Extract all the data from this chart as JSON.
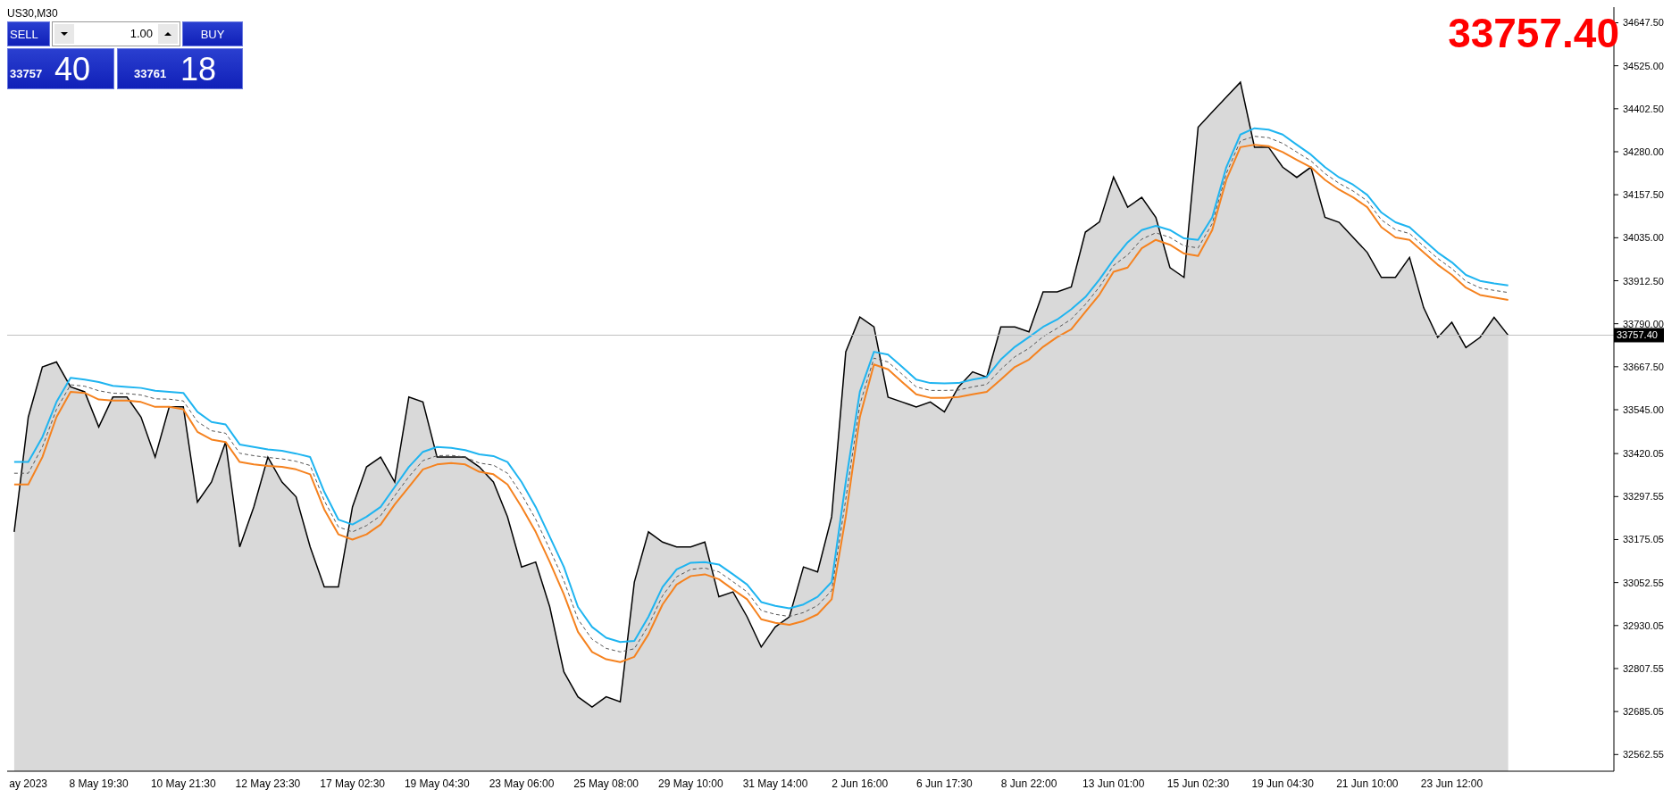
{
  "chart_data": {
    "type": "line",
    "title": "US30,M30",
    "categories": [
      null,
      "ay 2023",
      null,
      null,
      null,
      null,
      "8 May 19:30",
      null,
      null,
      null,
      null,
      null,
      "10 May 21:30",
      null,
      null,
      null,
      null,
      null,
      "12 May 23:30",
      null,
      null,
      null,
      null,
      null,
      "17 May 02:30",
      null,
      null,
      null,
      null,
      null,
      "19 May 04:30",
      null,
      null,
      null,
      null,
      null,
      "23 May 06:00",
      null,
      null,
      null,
      null,
      null,
      "25 May 08:00",
      null,
      null,
      null,
      null,
      null,
      "29 May 10:00",
      null,
      null,
      null,
      null,
      null,
      "31 May 14:00",
      null,
      null,
      null,
      null,
      null,
      "2 Jun 16:00",
      null,
      null,
      null,
      null,
      null,
      "6 Jun 17:30",
      null,
      null,
      null,
      null,
      null,
      "8 Jun 22:00",
      null,
      null,
      null,
      null,
      null,
      "13 Jun 01:00",
      null,
      null,
      null,
      null,
      null,
      "15 Jun 02:30",
      null,
      null,
      null,
      null,
      null,
      "19 Jun 04:30",
      null,
      null,
      null,
      null,
      null,
      "21 Jun 10:00",
      null,
      null,
      null,
      null,
      null,
      "23 Jun 12:00",
      null,
      null,
      null,
      null,
      null,
      null,
      null,
      null,
      null,
      null,
      null
    ],
    "series": [
      {
        "type": "area",
        "color": "#000000",
        "values": [
          33197,
          33524,
          33667,
          33681,
          33610,
          33596,
          33496,
          33581,
          33581,
          33524,
          33410,
          33553,
          33553,
          33282,
          33339,
          33453,
          33154,
          33268,
          33410,
          33339,
          33297,
          33154,
          33040,
          33040,
          33268,
          33382,
          33410,
          33339,
          33581,
          33567,
          33410,
          33410,
          33410,
          33382,
          33339,
          33240,
          33097,
          33111,
          32983,
          32798,
          32727,
          32698,
          32727,
          32713,
          33054,
          33197,
          33168,
          33154,
          33154,
          33168,
          33012,
          33026,
          32955,
          32869,
          32926,
          32955,
          33097,
          33083,
          33240,
          33710,
          33809,
          33781,
          33581,
          33567,
          33553,
          33567,
          33539,
          33610,
          33653,
          33638,
          33781,
          33781,
          33767,
          33881,
          33881,
          33895,
          34051,
          34080,
          34208,
          34122,
          34150,
          34093,
          33950,
          33922,
          34350,
          34393,
          34436,
          34478,
          34293,
          34293,
          34236,
          34207,
          34236,
          34093,
          34079,
          34036,
          33993,
          33922,
          33922,
          33979,
          33836,
          33751,
          33794,
          33722,
          33751,
          33808,
          33757,
          null,
          null,
          null,
          null,
          null,
          null,
          null
        ]
      },
      {
        "color": "#1eb4f0",
        "values": [
          33396,
          33396,
          33467,
          33567,
          33636,
          33631,
          33624,
          33613,
          33610,
          33607,
          33599,
          33596,
          33593,
          33539,
          33510,
          33503,
          33446,
          33439,
          33432,
          33428,
          33420,
          33410,
          33311,
          33232,
          33218,
          33240,
          33268,
          33325,
          33382,
          33425,
          33439,
          33436,
          33430,
          33418,
          33413,
          33396,
          33339,
          33268,
          33183,
          33097,
          32983,
          32926,
          32895,
          32883,
          32886,
          32955,
          33040,
          33090,
          33109,
          33111,
          33104,
          33076,
          33047,
          32997,
          32986,
          32979,
          32990,
          33012,
          33054,
          33339,
          33596,
          33710,
          33702,
          33667,
          33631,
          33621,
          33620,
          33621,
          33631,
          33638,
          33688,
          33724,
          33752,
          33781,
          33802,
          33831,
          33866,
          33916,
          33973,
          34022,
          34057,
          34069,
          34057,
          34033,
          34029,
          34093,
          34236,
          34329,
          34347,
          34343,
          34329,
          34300,
          34272,
          34236,
          34207,
          34186,
          34157,
          34107,
          34079,
          34065,
          34029,
          33993,
          33965,
          33929,
          33912,
          33905,
          33899,
          null,
          null,
          null,
          null,
          null,
          null,
          null
        ]
      },
      {
        "color": "#555555",
        "line_style": "dashed",
        "values": [
          33364,
          33364,
          33439,
          33546,
          33616,
          33612,
          33599,
          33592,
          33591,
          33587,
          33576,
          33575,
          33570,
          33511,
          33485,
          33478,
          33421,
          33414,
          33409,
          33405,
          33398,
          33386,
          33286,
          33211,
          33197,
          33215,
          33243,
          33300,
          33354,
          33400,
          33414,
          33415,
          33410,
          33393,
          33387,
          33364,
          33304,
          33233,
          33147,
          33058,
          32948,
          32891,
          32865,
          32855,
          32864,
          32930,
          33015,
          33069,
          33090,
          33094,
          33083,
          33055,
          33026,
          32973,
          32962,
          32956,
          32967,
          32987,
          33030,
          33290,
          33560,
          33692,
          33681,
          33646,
          33610,
          33600,
          33600,
          33601,
          33610,
          33617,
          33660,
          33696,
          33720,
          33753,
          33777,
          33803,
          33845,
          33895,
          33956,
          33986,
          34031,
          34049,
          34036,
          34012,
          34006,
          34075,
          34218,
          34311,
          34324,
          34320,
          34304,
          34279,
          34254,
          34218,
          34190,
          34168,
          34140,
          34086,
          34058,
          34047,
          34011,
          33976,
          33947,
          33911,
          33892,
          33885,
          33879,
          null,
          null,
          null,
          null,
          null,
          null,
          null
        ]
      },
      {
        "color": "#f5821f",
        "values": [
          33332,
          33332,
          33410,
          33524,
          33596,
          33593,
          33574,
          33571,
          33571,
          33567,
          33553,
          33553,
          33546,
          33482,
          33460,
          33453,
          33396,
          33389,
          33385,
          33382,
          33375,
          33361,
          33261,
          33190,
          33175,
          33190,
          33218,
          33275,
          33325,
          33375,
          33389,
          33393,
          33389,
          33368,
          33361,
          33332,
          33268,
          33197,
          33111,
          33019,
          32912,
          32855,
          32834,
          32826,
          32841,
          32905,
          32990,
          33047,
          33071,
          33076,
          33062,
          33033,
          33005,
          32948,
          32938,
          32932,
          32943,
          32962,
          33005,
          33240,
          33524,
          33674,
          33660,
          33624,
          33589,
          33579,
          33579,
          33581,
          33589,
          33596,
          33631,
          33667,
          33688,
          33724,
          33752,
          33774,
          33824,
          33873,
          33938,
          33950,
          34005,
          34029,
          34015,
          33990,
          33983,
          34057,
          34200,
          34293,
          34300,
          34296,
          34279,
          34257,
          34236,
          34200,
          34172,
          34150,
          34122,
          34065,
          34036,
          34029,
          33993,
          33958,
          33929,
          33893,
          33872,
          33865,
          33858,
          null,
          null,
          null,
          null,
          null,
          null,
          null
        ]
      }
    ],
    "ylim": [
      32515,
      34692
    ],
    "yticks": [
      {
        "value": 32562.55,
        "label": "32562.55"
      },
      {
        "value": 32685.05,
        "label": "32685.05"
      },
      {
        "value": 32807.55,
        "label": "32807.55"
      },
      {
        "value": 32930.05,
        "label": "32930.05"
      },
      {
        "value": 33052.55,
        "label": "33052.55"
      },
      {
        "value": 33175.05,
        "label": "33175.05"
      },
      {
        "value": 33297.55,
        "label": "33297.55"
      },
      {
        "value": 33420.05,
        "label": "33420.05"
      },
      {
        "value": 33545,
        "label": "33545.00"
      },
      {
        "value": 33667.5,
        "label": "33667.50"
      },
      {
        "value": 33790,
        "label": "33790.00"
      },
      {
        "value": 33912.5,
        "label": "33912.50"
      },
      {
        "value": 34035,
        "label": "34035.00"
      },
      {
        "value": 34157.5,
        "label": "34157.50"
      },
      {
        "value": 34280,
        "label": "34280.00"
      },
      {
        "value": 34402.5,
        "label": "34402.50"
      },
      {
        "value": 34525,
        "label": "34525.00"
      },
      {
        "value": 34647.5,
        "label": "34647.50"
      }
    ],
    "ref_lines": [
      {
        "axis": "y",
        "value": 33757.4,
        "label": "33757.40",
        "color": "#c0c0c0"
      }
    ],
    "annotations": [
      "33757.40",
      "SELL",
      "1.00",
      "BUY",
      "33757",
      "40",
      "33761",
      "18"
    ]
  }
}
